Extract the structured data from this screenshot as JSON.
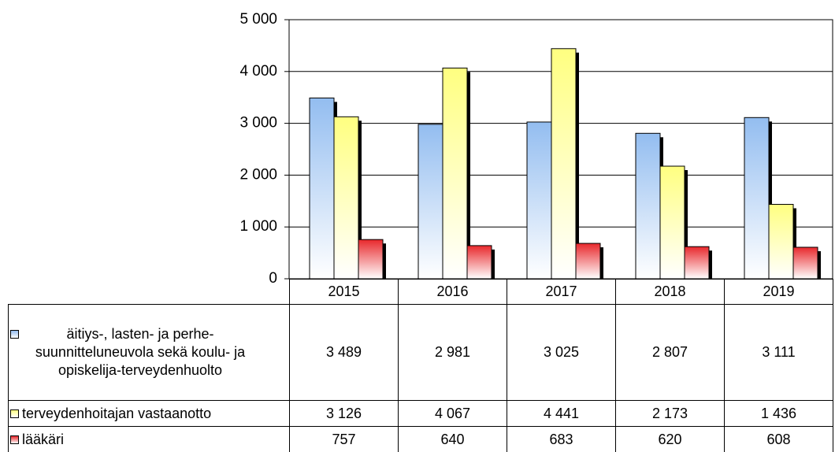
{
  "chart_data": {
    "type": "bar",
    "categories": [
      "2015",
      "2016",
      "2017",
      "2018",
      "2019"
    ],
    "series": [
      {
        "name": "äitiys-, lasten- ja perhe-suunnitteluneuvola sekä koulu- ja opiskelija-terveydenhuolto",
        "color": "#93bdf0",
        "values": [
          3489,
          2981,
          3025,
          2807,
          3111
        ],
        "value_labels": [
          "3 489",
          "2 981",
          "3 025",
          "2 807",
          "3 111"
        ]
      },
      {
        "name": "terveydenhoitajan vastaanotto",
        "color": "#ffff80",
        "values": [
          3126,
          4067,
          4441,
          2173,
          1436
        ],
        "value_labels": [
          "3 126",
          "4 067",
          "4 441",
          "2 173",
          "1 436"
        ]
      },
      {
        "name": "lääkäri",
        "color": "#e8282c",
        "values": [
          757,
          640,
          683,
          620,
          608
        ],
        "value_labels": [
          "757",
          "640",
          "683",
          "620",
          "608"
        ]
      }
    ],
    "ylim": [
      0,
      5000
    ],
    "yticks": [
      0,
      {
        "value": 1000,
        "label": "1 000"
      },
      {
        "value": 2000,
        "label": "2 000"
      },
      {
        "value": 3000,
        "label": "3 000"
      },
      {
        "value": 4000,
        "label": "4 000"
      },
      {
        "value": 5000,
        "label": "5 000"
      }
    ],
    "grid": true
  }
}
